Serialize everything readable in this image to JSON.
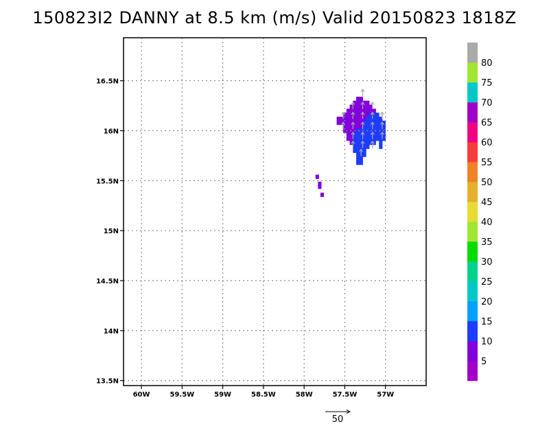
{
  "chart_data": {
    "type": "heatmap",
    "title": "150823I2 DANNY at 8.5 km (m/s) Valid 20150823  1818Z",
    "x_ticks": [
      {
        "value": -60.0,
        "label": "60W"
      },
      {
        "value": -59.5,
        "label": "59.5W"
      },
      {
        "value": -59.0,
        "label": "59W"
      },
      {
        "value": -58.5,
        "label": "58.5W"
      },
      {
        "value": -58.0,
        "label": "58W"
      },
      {
        "value": -57.5,
        "label": "57.5W"
      },
      {
        "value": -57.0,
        "label": "57W"
      }
    ],
    "y_ticks": [
      {
        "value": 13.5,
        "label": "13.5N"
      },
      {
        "value": 14.0,
        "label": "14N"
      },
      {
        "value": 14.5,
        "label": "14.5N"
      },
      {
        "value": 15.0,
        "label": "15N"
      },
      {
        "value": 15.5,
        "label": "15.5N"
      },
      {
        "value": 16.0,
        "label": "16N"
      },
      {
        "value": 16.5,
        "label": "16.5N"
      }
    ],
    "xlim": [
      -60.22,
      -56.5
    ],
    "ylim": [
      13.45,
      16.93
    ],
    "grid": true,
    "grid_spacing": 0.5,
    "cell_size_deg": 0.04,
    "colorbar": {
      "labels": [
        "5",
        "10",
        "15",
        "20",
        "25",
        "30",
        "35",
        "40",
        "45",
        "50",
        "55",
        "60",
        "65",
        "70",
        "75",
        "80"
      ],
      "colors": [
        "#a000c8",
        "#8200dc",
        "#1e3cff",
        "#00a0ff",
        "#00c8c8",
        "#00d28c",
        "#00dc00",
        "#a0e632",
        "#e6dc32",
        "#e6af2d",
        "#f08228",
        "#fa3c3c",
        "#f00082",
        "#a000c8",
        "#00c8c8",
        "#a0e632",
        "#aaaaaa"
      ]
    },
    "reference_vector": {
      "label": "50",
      "speed": 50
    },
    "bins": [
      {
        "speed_range": "5-10",
        "color": "#8200dc",
        "cells": [
          [
            -57.34,
            16.32
          ],
          [
            -57.3,
            16.32
          ],
          [
            -57.38,
            16.28
          ],
          [
            -57.34,
            16.28
          ],
          [
            -57.3,
            16.28
          ],
          [
            -57.26,
            16.28
          ],
          [
            -57.22,
            16.28
          ],
          [
            -57.42,
            16.24
          ],
          [
            -57.38,
            16.24
          ],
          [
            -57.34,
            16.24
          ],
          [
            -57.3,
            16.24
          ],
          [
            -57.26,
            16.24
          ],
          [
            -57.22,
            16.24
          ],
          [
            -57.18,
            16.24
          ],
          [
            -57.46,
            16.2
          ],
          [
            -57.42,
            16.2
          ],
          [
            -57.38,
            16.2
          ],
          [
            -57.34,
            16.2
          ],
          [
            -57.3,
            16.2
          ],
          [
            -57.26,
            16.2
          ],
          [
            -57.22,
            16.2
          ],
          [
            -57.18,
            16.2
          ],
          [
            -57.14,
            16.2
          ],
          [
            -57.5,
            16.16
          ],
          [
            -57.46,
            16.16
          ],
          [
            -57.42,
            16.16
          ],
          [
            -57.38,
            16.16
          ],
          [
            -57.34,
            16.16
          ],
          [
            -57.3,
            16.16
          ],
          [
            -57.26,
            16.16
          ],
          [
            -57.22,
            16.16
          ],
          [
            -57.58,
            16.12
          ],
          [
            -57.54,
            16.12
          ],
          [
            -57.5,
            16.12
          ],
          [
            -57.46,
            16.12
          ],
          [
            -57.42,
            16.12
          ],
          [
            -57.38,
            16.12
          ],
          [
            -57.34,
            16.12
          ],
          [
            -57.3,
            16.12
          ],
          [
            -57.26,
            16.12
          ],
          [
            -57.58,
            16.08
          ],
          [
            -57.54,
            16.08
          ],
          [
            -57.5,
            16.08
          ],
          [
            -57.46,
            16.08
          ],
          [
            -57.42,
            16.08
          ],
          [
            -57.38,
            16.08
          ],
          [
            -57.34,
            16.08
          ],
          [
            -57.3,
            16.08
          ],
          [
            -57.5,
            16.04
          ],
          [
            -57.46,
            16.04
          ],
          [
            -57.42,
            16.04
          ],
          [
            -57.38,
            16.04
          ],
          [
            -57.34,
            16.04
          ],
          [
            -57.3,
            16.04
          ],
          [
            -57.5,
            16.0
          ],
          [
            -57.46,
            16.0
          ],
          [
            -57.42,
            16.0
          ],
          [
            -57.38,
            16.0
          ],
          [
            -57.46,
            15.96
          ],
          [
            -57.42,
            15.96
          ],
          [
            -57.46,
            15.92
          ],
          [
            -57.42,
            15.92
          ],
          [
            -57.42,
            15.88
          ],
          [
            -57.84,
            15.54
          ],
          [
            -57.81,
            15.47
          ],
          [
            -57.81,
            15.44
          ],
          [
            -57.78,
            15.36
          ]
        ]
      },
      {
        "speed_range": "10-15",
        "color": "#1e3cff",
        "cells": [
          [
            -57.18,
            16.16
          ],
          [
            -57.14,
            16.16
          ],
          [
            -57.1,
            16.16
          ],
          [
            -57.22,
            16.12
          ],
          [
            -57.18,
            16.12
          ],
          [
            -57.14,
            16.12
          ],
          [
            -57.1,
            16.12
          ],
          [
            -57.06,
            16.12
          ],
          [
            -57.26,
            16.08
          ],
          [
            -57.22,
            16.08
          ],
          [
            -57.18,
            16.08
          ],
          [
            -57.14,
            16.08
          ],
          [
            -57.1,
            16.08
          ],
          [
            -57.06,
            16.08
          ],
          [
            -57.02,
            16.08
          ],
          [
            -57.26,
            16.04
          ],
          [
            -57.22,
            16.04
          ],
          [
            -57.18,
            16.04
          ],
          [
            -57.14,
            16.04
          ],
          [
            -57.1,
            16.04
          ],
          [
            -57.06,
            16.04
          ],
          [
            -57.02,
            16.04
          ],
          [
            -57.34,
            16.0
          ],
          [
            -57.3,
            16.0
          ],
          [
            -57.26,
            16.0
          ],
          [
            -57.22,
            16.0
          ],
          [
            -57.18,
            16.0
          ],
          [
            -57.14,
            16.0
          ],
          [
            -57.1,
            16.0
          ],
          [
            -57.06,
            16.0
          ],
          [
            -57.02,
            16.0
          ],
          [
            -57.38,
            15.96
          ],
          [
            -57.34,
            15.96
          ],
          [
            -57.3,
            15.96
          ],
          [
            -57.26,
            15.96
          ],
          [
            -57.22,
            15.96
          ],
          [
            -57.18,
            15.96
          ],
          [
            -57.14,
            15.96
          ],
          [
            -57.1,
            15.96
          ],
          [
            -57.06,
            15.96
          ],
          [
            -57.02,
            15.96
          ],
          [
            -57.38,
            15.92
          ],
          [
            -57.34,
            15.92
          ],
          [
            -57.3,
            15.92
          ],
          [
            -57.26,
            15.92
          ],
          [
            -57.22,
            15.92
          ],
          [
            -57.18,
            15.92
          ],
          [
            -57.14,
            15.92
          ],
          [
            -57.1,
            15.92
          ],
          [
            -57.06,
            15.92
          ],
          [
            -57.02,
            15.92
          ],
          [
            -57.38,
            15.88
          ],
          [
            -57.34,
            15.88
          ],
          [
            -57.3,
            15.88
          ],
          [
            -57.26,
            15.88
          ],
          [
            -57.22,
            15.88
          ],
          [
            -57.18,
            15.88
          ],
          [
            -57.14,
            15.88
          ],
          [
            -57.06,
            15.88
          ],
          [
            -57.38,
            15.84
          ],
          [
            -57.34,
            15.84
          ],
          [
            -57.3,
            15.84
          ],
          [
            -57.26,
            15.84
          ],
          [
            -57.22,
            15.84
          ],
          [
            -57.06,
            15.84
          ],
          [
            -57.38,
            15.8
          ],
          [
            -57.34,
            15.8
          ],
          [
            -57.3,
            15.8
          ],
          [
            -57.26,
            15.8
          ],
          [
            -57.34,
            15.76
          ],
          [
            -57.3,
            15.76
          ],
          [
            -57.26,
            15.76
          ],
          [
            -57.34,
            15.72
          ],
          [
            -57.3,
            15.72
          ],
          [
            -57.34,
            15.68
          ],
          [
            -57.3,
            15.68
          ]
        ]
      }
    ],
    "vectors": [
      [
        -57.28,
        16.38
      ],
      [
        -57.4,
        16.25
      ],
      [
        -57.28,
        16.25
      ],
      [
        -57.16,
        16.25
      ],
      [
        -57.52,
        16.15
      ],
      [
        -57.4,
        16.15
      ],
      [
        -57.28,
        16.15
      ],
      [
        -57.16,
        16.15
      ],
      [
        -57.04,
        16.15
      ],
      [
        -57.52,
        16.05
      ],
      [
        -57.4,
        16.05
      ],
      [
        -57.28,
        16.05
      ],
      [
        -57.16,
        16.05
      ],
      [
        -57.04,
        16.05
      ],
      [
        -57.4,
        15.95
      ],
      [
        -57.28,
        15.95
      ],
      [
        -57.16,
        15.95
      ],
      [
        -57.04,
        15.95
      ],
      [
        -57.4,
        15.86
      ],
      [
        -57.28,
        15.86
      ],
      [
        -57.16,
        15.86
      ],
      [
        -57.3,
        15.78
      ]
    ]
  }
}
